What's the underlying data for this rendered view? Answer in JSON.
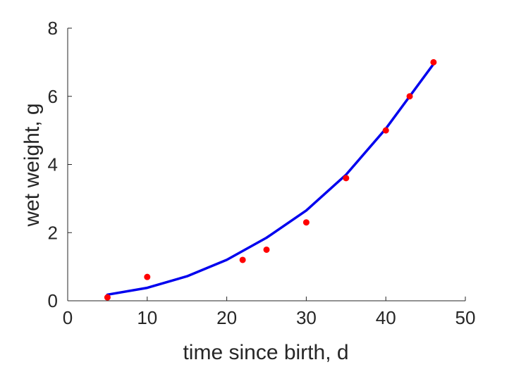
{
  "chart_data": {
    "type": "scatter",
    "xlabel": "time since birth, d",
    "ylabel": "wet weight, g",
    "xlim": [
      0,
      50
    ],
    "ylim": [
      0,
      8
    ],
    "xticks": [
      0,
      10,
      20,
      30,
      40,
      50
    ],
    "yticks": [
      0,
      2,
      4,
      6,
      8
    ],
    "grid": false,
    "series": [
      {
        "kind": "points",
        "color": "#ff0000",
        "x": [
          5,
          10,
          22,
          25,
          30,
          35,
          40,
          43,
          46
        ],
        "y": [
          0.1,
          0.7,
          1.2,
          1.5,
          2.3,
          3.6,
          5.0,
          6.0,
          7.0
        ]
      },
      {
        "kind": "line",
        "color": "#0000ee",
        "x": [
          5,
          10,
          15,
          20,
          25,
          30,
          35,
          40,
          46
        ],
        "y": [
          0.18,
          0.38,
          0.72,
          1.2,
          1.85,
          2.65,
          3.7,
          5.05,
          6.95
        ]
      }
    ]
  }
}
